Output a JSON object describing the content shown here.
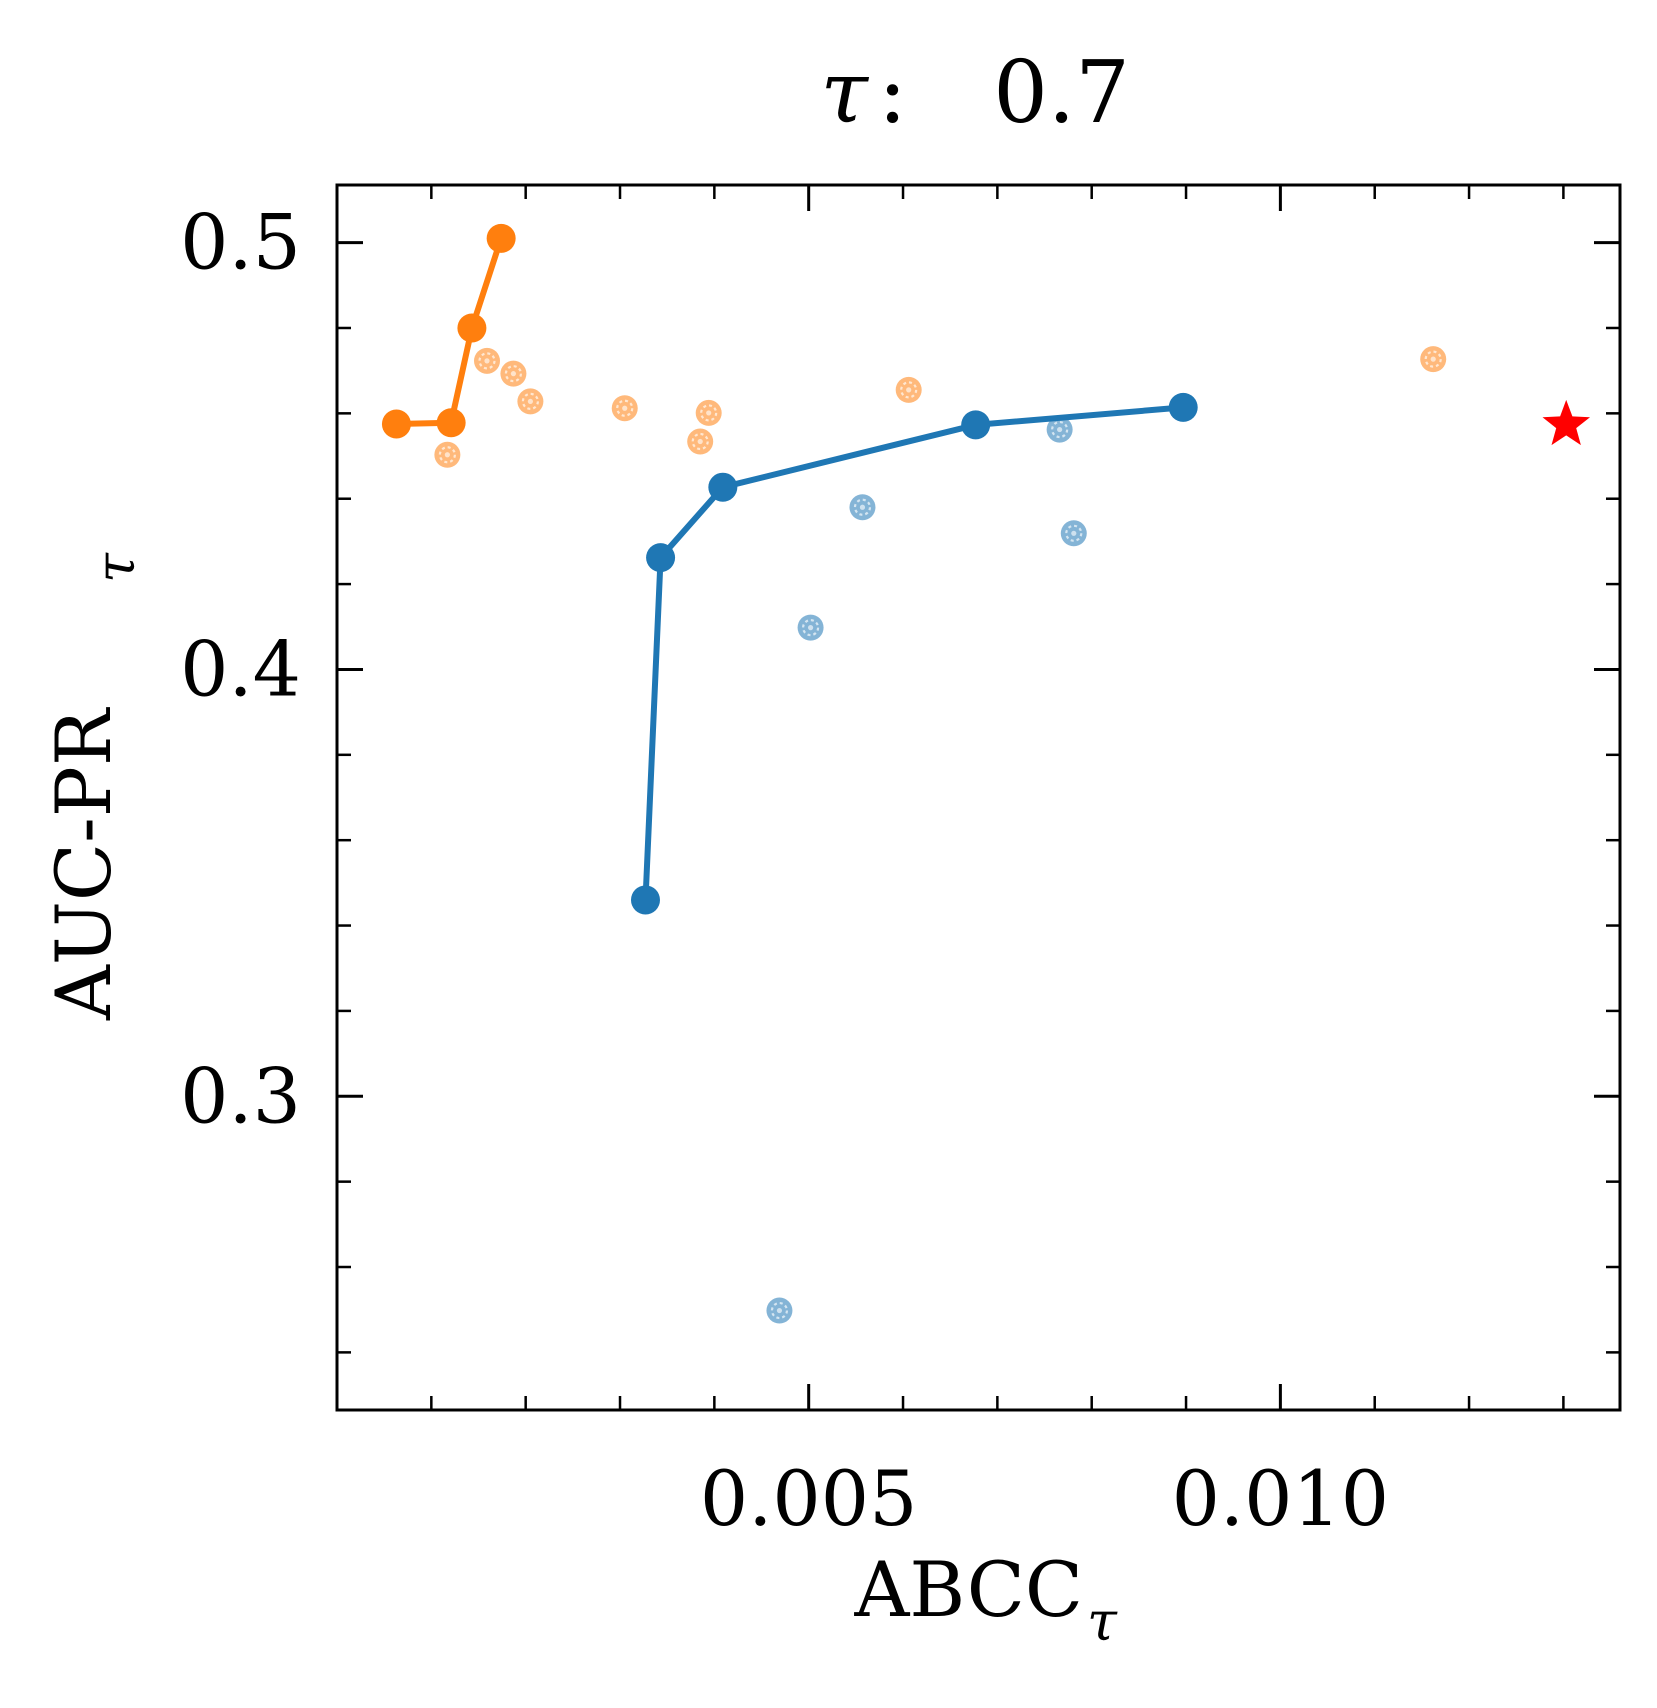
{
  "chart_data": {
    "type": "scatter",
    "title_symbol": "τ",
    "title_value": "0.7",
    "xlabel_main": "ABCC",
    "xlabel_sub": "τ",
    "ylabel_main": "AUC-PR",
    "ylabel_sub": "τ",
    "xlim": [
      0.0,
      0.0136
    ],
    "ylim": [
      0.2265,
      0.5135
    ],
    "x_ticks": [
      {
        "value": 0.005,
        "label": "0.005"
      },
      {
        "value": 0.01,
        "label": "0.010"
      }
    ],
    "x_minor_ticks": [
      0.001,
      0.002,
      0.003,
      0.004,
      0.006,
      0.007,
      0.008,
      0.009,
      0.011,
      0.012,
      0.013
    ],
    "y_ticks": [
      {
        "value": 0.3,
        "label": "0.3"
      },
      {
        "value": 0.4,
        "label": "0.4"
      },
      {
        "value": 0.5,
        "label": "0.5"
      }
    ],
    "y_minor_ticks": [
      0.24,
      0.26,
      0.28,
      0.32,
      0.34,
      0.36,
      0.38,
      0.42,
      0.44,
      0.46,
      0.48
    ],
    "colors": {
      "blue": "#1f77b4",
      "orange": "#ff7f0e",
      "star": "#ff0000"
    },
    "series": [
      {
        "name": "orange-front",
        "color": "orange",
        "front": [
          [
            0.00063,
            0.4575
          ],
          [
            0.00121,
            0.4578
          ],
          [
            0.00143,
            0.48
          ],
          [
            0.00174,
            0.501
          ]
        ],
        "scatter": [
          [
            0.00159,
            0.4723
          ],
          [
            0.00187,
            0.4693
          ],
          [
            0.00205,
            0.4628
          ],
          [
            0.00305,
            0.4612
          ],
          [
            0.00394,
            0.4601
          ],
          [
            0.00385,
            0.4534
          ],
          [
            0.00117,
            0.4503
          ],
          [
            0.00606,
            0.4655
          ],
          [
            0.01162,
            0.4727
          ]
        ]
      },
      {
        "name": "blue-front",
        "color": "blue",
        "front": [
          [
            0.00327,
            0.346
          ],
          [
            0.00343,
            0.4262
          ],
          [
            0.00409,
            0.4427
          ],
          [
            0.00677,
            0.4573
          ],
          [
            0.00897,
            0.4614
          ]
        ],
        "scatter": [
          [
            0.00502,
            0.4098
          ],
          [
            0.00557,
            0.438
          ],
          [
            0.00766,
            0.4562
          ],
          [
            0.00781,
            0.4319
          ],
          [
            0.00469,
            0.2498
          ]
        ]
      }
    ],
    "star": {
      "x": 0.01303,
      "y": 0.4573
    }
  }
}
